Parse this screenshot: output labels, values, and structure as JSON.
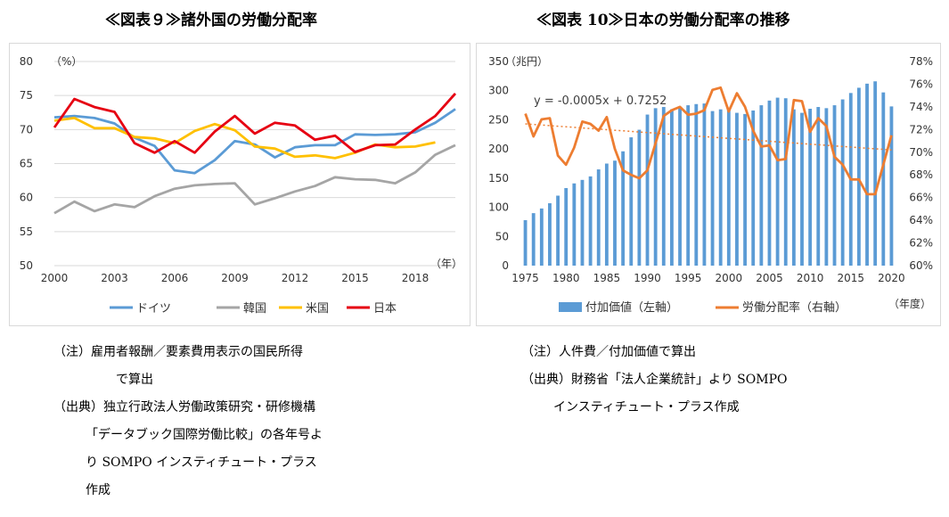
{
  "figures": {
    "left_title": "≪図表９≫諸外国の労働分配率",
    "right_title": "≪図表 10≫日本の労働分配率の推移"
  },
  "notes_left": [
    "（注）雇用者報酬／要素費用表示の国民所得",
    "で算出",
    "（出典）独立行政法人労働政策研究・研修機構",
    "「データブック国際労働比較」の各年号よ",
    "り SOMPO インスティチュート・プラス",
    "作成"
  ],
  "notes_right": [
    "（注）人件費／付加価値で算出",
    "（出典）財務省「法人企業統計」より SOMPO",
    "インスティチュート・プラス作成"
  ],
  "chart_data": [
    {
      "type": "line",
      "unit_label": "（%）",
      "x_unit_label": "（年）",
      "ylim": [
        50,
        80
      ],
      "y_ticks": [
        50,
        55,
        60,
        65,
        70,
        75,
        80
      ],
      "x_ticks": [
        2000,
        2003,
        2006,
        2009,
        2012,
        2015,
        2018
      ],
      "x": [
        2000,
        2001,
        2002,
        2003,
        2004,
        2005,
        2006,
        2007,
        2008,
        2009,
        2010,
        2011,
        2012,
        2013,
        2014,
        2015,
        2016,
        2017,
        2018,
        2019,
        2020
      ],
      "legend_position": "bottom",
      "grid": true,
      "series": [
        {
          "name": "ドイツ",
          "color": "#5b9bd5",
          "values": [
            71.8,
            72.0,
            71.7,
            70.9,
            68.8,
            67.6,
            64.0,
            63.6,
            65.5,
            68.3,
            67.8,
            65.9,
            67.4,
            67.7,
            67.7,
            69.3,
            69.2,
            69.3,
            69.6,
            71.0,
            73.0
          ]
        },
        {
          "name": "韓国",
          "color": "#a5a5a5",
          "values": [
            57.7,
            59.4,
            58.0,
            59.0,
            58.6,
            60.2,
            61.3,
            61.8,
            62.0,
            62.1,
            59.0,
            59.9,
            60.9,
            61.7,
            63.0,
            62.7,
            62.6,
            62.1,
            63.7,
            66.3,
            67.7
          ]
        },
        {
          "name": "米国",
          "color": "#ffc000",
          "values": [
            71.3,
            71.7,
            70.2,
            70.2,
            68.9,
            68.7,
            68.0,
            69.8,
            70.8,
            69.9,
            67.5,
            67.2,
            66.0,
            66.2,
            65.8,
            66.6,
            67.8,
            67.4,
            67.5,
            68.1,
            null
          ]
        },
        {
          "name": "日本",
          "color": "#e60012",
          "values": [
            70.3,
            74.5,
            73.3,
            72.6,
            68.0,
            66.6,
            68.3,
            66.6,
            69.7,
            72.0,
            69.4,
            71.0,
            70.6,
            68.5,
            69.1,
            66.7,
            67.7,
            67.8,
            70.0,
            72.0,
            75.3
          ]
        }
      ]
    },
    {
      "type": "bar+line",
      "unit_label": "（兆円）",
      "x_unit_label": "（年度）",
      "left_ylim": [
        0,
        350
      ],
      "left_ticks": [
        0,
        50,
        100,
        150,
        200,
        250,
        300,
        350
      ],
      "right_ylim": [
        60,
        78
      ],
      "right_ticks": [
        "60%",
        "62%",
        "64%",
        "66%",
        "68%",
        "70%",
        "72%",
        "74%",
        "76%",
        "78%"
      ],
      "x_ticks": [
        1975,
        1980,
        1985,
        1990,
        1995,
        2000,
        2005,
        2010,
        2015,
        2020
      ],
      "x": [
        1975,
        1976,
        1977,
        1978,
        1979,
        1980,
        1981,
        1982,
        1983,
        1984,
        1985,
        1986,
        1987,
        1988,
        1989,
        1990,
        1991,
        1992,
        1993,
        1994,
        1995,
        1996,
        1997,
        1998,
        1999,
        2000,
        2001,
        2002,
        2003,
        2004,
        2005,
        2006,
        2007,
        2008,
        2009,
        2010,
        2011,
        2012,
        2013,
        2014,
        2015,
        2016,
        2017,
        2018,
        2019,
        2020
      ],
      "legend_position": "bottom",
      "annotation": "y = -0.0005x + 0.7252",
      "trendline": {
        "start": 72.5,
        "end": 70.2,
        "color": "#ed7d31"
      },
      "series": [
        {
          "name": "付加価値（左軸）",
          "kind": "bar",
          "color": "#5b9bd5",
          "values": [
            78,
            90,
            98,
            107,
            120,
            133,
            141,
            147,
            153,
            165,
            175,
            180,
            196,
            220,
            233,
            259,
            270,
            272,
            268,
            270,
            275,
            277,
            278,
            265,
            268,
            268,
            262,
            260,
            266,
            275,
            283,
            288,
            287,
            268,
            262,
            269,
            272,
            270,
            275,
            285,
            296,
            305,
            312,
            316,
            297,
            273
          ]
        },
        {
          "name": "労働分配率（右軸）",
          "kind": "line",
          "color": "#ed7d31",
          "values": [
            73.4,
            71.4,
            72.9,
            73.0,
            69.7,
            68.9,
            70.4,
            72.7,
            72.5,
            71.9,
            73.1,
            70.3,
            68.4,
            68.0,
            67.7,
            68.4,
            70.8,
            73.2,
            73.7,
            74.0,
            73.3,
            73.4,
            73.7,
            75.5,
            75.7,
            73.6,
            75.2,
            74.0,
            71.9,
            70.5,
            70.6,
            69.3,
            69.4,
            74.6,
            74.5,
            71.8,
            73.0,
            72.3,
            69.6,
            68.9,
            67.6,
            67.6,
            66.3,
            66.3,
            68.9,
            71.5
          ]
        }
      ]
    }
  ]
}
